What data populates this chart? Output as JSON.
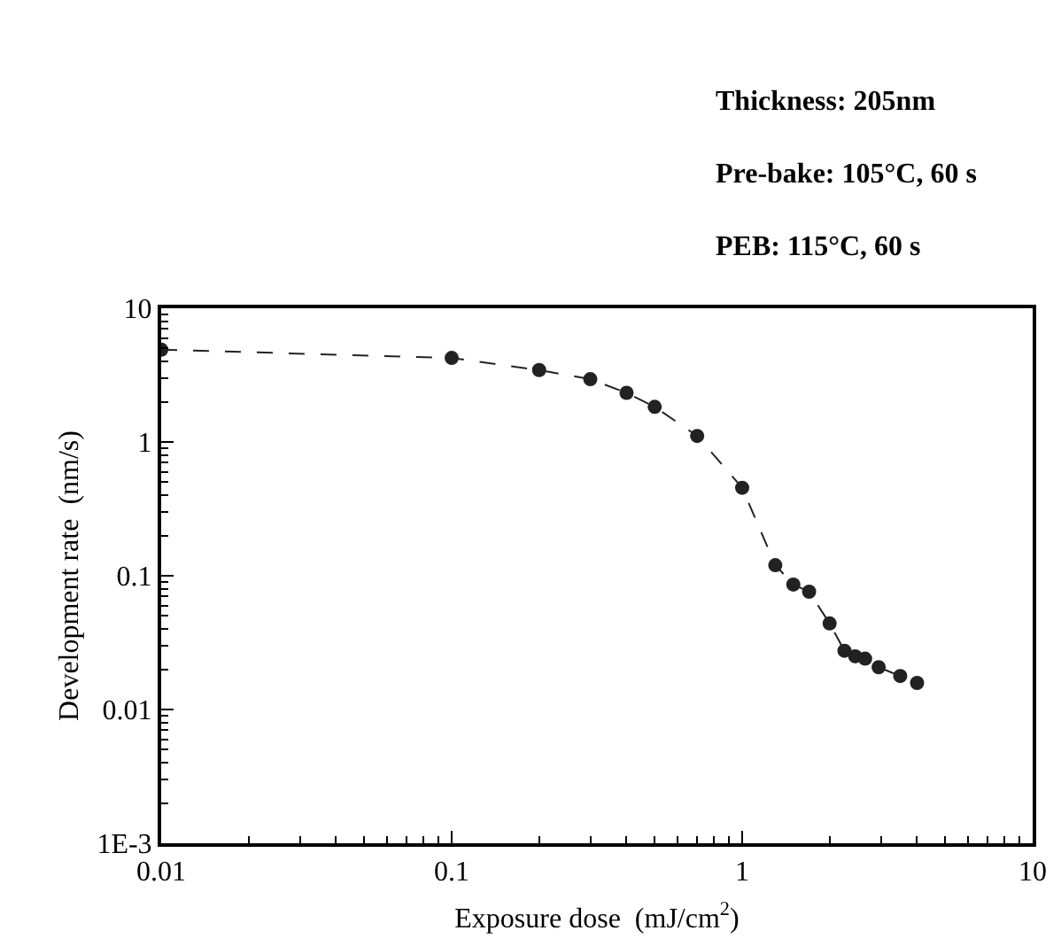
{
  "chart_data": {
    "type": "line",
    "x": [
      0.01,
      0.1,
      0.2,
      0.3,
      0.4,
      0.5,
      0.7,
      1.0,
      1.3,
      1.5,
      1.7,
      2.0,
      2.25,
      2.45,
      2.65,
      2.95,
      3.5,
      4.0
    ],
    "series": [
      {
        "color": "#222222",
        "values": [
          4.9,
          4.25,
          3.45,
          2.95,
          2.33,
          1.83,
          1.11,
          0.455,
          0.12,
          0.086,
          0.076,
          0.044,
          0.0275,
          0.025,
          0.024,
          0.0207,
          0.0178,
          0.0158
        ]
      }
    ],
    "xlabel": "Exposure dose  (mJ/cm$^{2}$)",
    "ylabel": "Development rate  (nm/s)",
    "annotations": [
      "Thickness: 205nm",
      "Pre-bake: 105°C, 60 s",
      "PEB: 115°C, 60 s"
    ],
    "log": "xy",
    "xlim": [
      0.01,
      10
    ],
    "ylim": [
      0.001,
      10
    ],
    "xticks": [
      0.01,
      0.1,
      1,
      10
    ],
    "yticks": [
      {
        "value": 0.001,
        "label": "1E-3"
      },
      0.01,
      0.1,
      1,
      10
    ],
    "marker": "circle",
    "line_style": "dashed"
  }
}
